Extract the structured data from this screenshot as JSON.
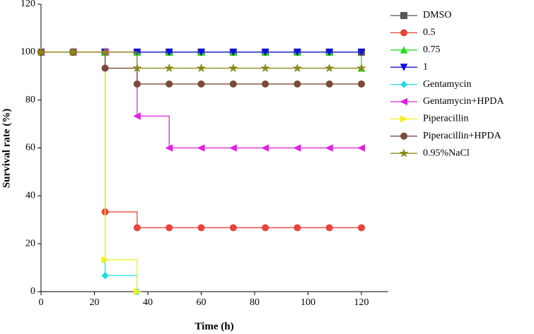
{
  "chart_data": {
    "type": "step",
    "xlabel": "Time (h)",
    "ylabel": "Survival rate (%)",
    "x": [
      0,
      12,
      24,
      36,
      48,
      60,
      72,
      84,
      96,
      108,
      120
    ],
    "xlim": [
      0,
      130
    ],
    "xticks": [
      0,
      20,
      40,
      60,
      80,
      100,
      120
    ],
    "ylim": [
      0,
      120
    ],
    "yticks": [
      0,
      20,
      40,
      60,
      80,
      100,
      120
    ],
    "legend": "right",
    "series": [
      {
        "name": "DMSO",
        "color": "#555555",
        "marker": "square",
        "values": [
          100,
          100,
          100,
          100,
          100,
          100,
          100,
          100,
          100,
          100,
          100
        ]
      },
      {
        "name": "0.5",
        "color": "#e8443a",
        "marker": "circle",
        "values": [
          100,
          100,
          33.3,
          26.7,
          26.7,
          26.7,
          26.7,
          26.7,
          26.7,
          26.7,
          26.7
        ]
      },
      {
        "name": "0.75",
        "color": "#22dd22",
        "marker": "triangle-up",
        "values": [
          100,
          100,
          100,
          100,
          100,
          100,
          100,
          100,
          100,
          100,
          93.3
        ]
      },
      {
        "name": "1",
        "color": "#1010dd",
        "marker": "triangle-down",
        "values": [
          100,
          100,
          100,
          100,
          100,
          100,
          100,
          100,
          100,
          100,
          100
        ]
      },
      {
        "name": "Gentamycin",
        "color": "#22dddd",
        "marker": "diamond",
        "values": [
          100,
          100,
          6.7,
          0,
          null,
          null,
          null,
          null,
          null,
          null,
          null
        ]
      },
      {
        "name": "Gentamycin+HPDA",
        "color": "#e020e0",
        "marker": "triangle-left",
        "values": [
          100,
          100,
          100,
          73.3,
          60,
          60,
          60,
          60,
          60,
          60,
          60
        ]
      },
      {
        "name": "Piperacillin",
        "color": "#f0f020",
        "marker": "triangle-right",
        "values": [
          100,
          100,
          13.3,
          0,
          null,
          null,
          null,
          null,
          null,
          null,
          null
        ]
      },
      {
        "name": "Piperacillin+HPDA",
        "color": "#7a4a3a",
        "marker": "circle",
        "values": [
          100,
          100,
          93.3,
          86.7,
          86.7,
          86.7,
          86.7,
          86.7,
          86.7,
          86.7,
          86.7
        ]
      },
      {
        "name": "0.95%NaCl",
        "color": "#8a8a1a",
        "marker": "star",
        "values": [
          100,
          100,
          100,
          93.3,
          93.3,
          93.3,
          93.3,
          93.3,
          93.3,
          93.3,
          93.3
        ]
      }
    ]
  }
}
